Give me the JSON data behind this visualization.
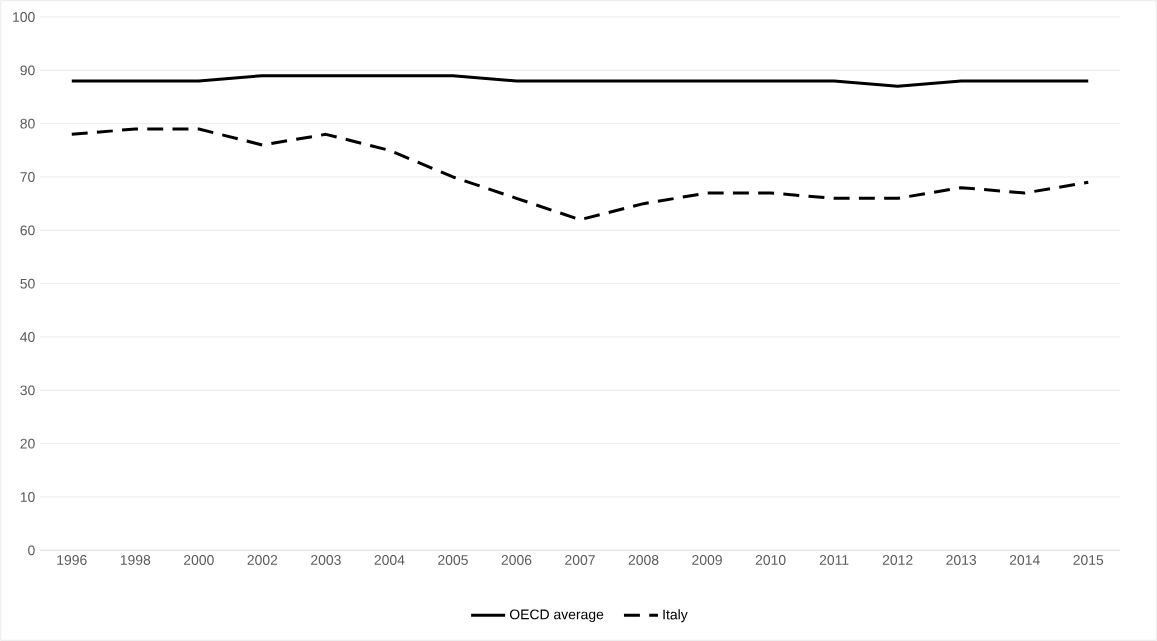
{
  "chart_data": {
    "type": "line",
    "categories": [
      "1996",
      "1998",
      "2000",
      "2002",
      "2003",
      "2004",
      "2005",
      "2006",
      "2007",
      "2008",
      "2009",
      "2010",
      "2011",
      "2012",
      "2013",
      "2014",
      "2015"
    ],
    "series": [
      {
        "name": "OECD average",
        "color": "#000000",
        "line_style": "solid",
        "values": [
          88,
          88,
          88,
          89,
          89,
          89,
          89,
          88,
          88,
          88,
          88,
          88,
          88,
          87,
          88,
          88,
          88
        ]
      },
      {
        "name": "Italy",
        "color": "#000000",
        "line_style": "dashed",
        "values": [
          78,
          79,
          79,
          76,
          78,
          75,
          70,
          66,
          62,
          65,
          67,
          67,
          66,
          66,
          68,
          67,
          69
        ]
      }
    ],
    "ylim": [
      0,
      100
    ],
    "yticks": [
      0,
      10,
      20,
      30,
      40,
      50,
      60,
      70,
      80,
      90,
      100
    ],
    "grid": "y",
    "legend": "bottom",
    "marker": "none"
  }
}
